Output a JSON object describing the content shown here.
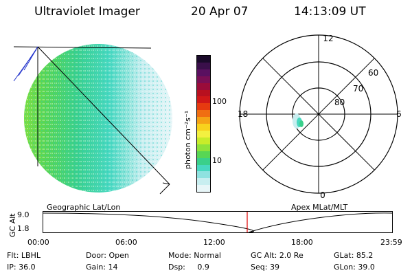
{
  "header": {
    "title": "Ultraviolet Imager",
    "date": "20 Apr 07",
    "time": "14:13:09 UT"
  },
  "colorbar": {
    "unit_label": "photon cm⁻²s⁻¹",
    "ticks": [
      "100",
      "10"
    ],
    "colors": [
      "#1a0a2a",
      "#3a0f4a",
      "#5a1060",
      "#7a0f55",
      "#9a0c3a",
      "#b8101f",
      "#d01818",
      "#e63a10",
      "#f06e12",
      "#f5a316",
      "#f8d21d",
      "#f3f040",
      "#c8ec2a",
      "#8fe23a",
      "#58d654",
      "#3ad08a",
      "#48d8c0",
      "#8fe2e0",
      "#c8eef0",
      "#e8f6f8"
    ]
  },
  "polar_plot": {
    "mlt_labels": {
      "top": "12",
      "bottom": "0",
      "left": "18",
      "right": "6"
    },
    "lat_labels": [
      "60",
      "70",
      "80"
    ]
  },
  "plot_labels": {
    "left": "Geographic Lat/Lon",
    "right": "Apex MLat/MLT"
  },
  "timeline": {
    "y_label": "GC Alt",
    "y_top": "9.0",
    "y_bottom": "1.8",
    "time_ticks": [
      "00:00",
      "06:00",
      "12:00",
      "18:00",
      "23:59"
    ],
    "marker_color": "#e00000"
  },
  "status": {
    "row1": [
      {
        "label": "Flt:",
        "value": "LBHL"
      },
      {
        "label": "Door:",
        "value": "Open"
      },
      {
        "label": "Mode:",
        "value": "Normal"
      },
      {
        "label": "GC Alt:",
        "value": "2.0 Re"
      },
      {
        "label": "GLat:",
        "value": "85.2"
      }
    ],
    "row2": [
      {
        "label": "IP:",
        "value": "36.0"
      },
      {
        "label": "Gain:",
        "value": "14"
      },
      {
        "label": "Dsp:",
        "value": "0.9"
      },
      {
        "label": "Seq:",
        "value": "39"
      },
      {
        "label": "GLon:",
        "value": "39.0"
      }
    ]
  }
}
